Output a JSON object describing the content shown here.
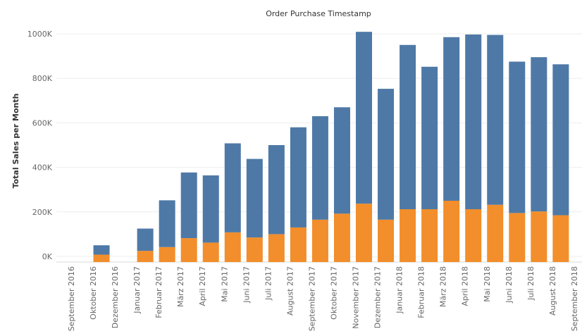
{
  "chart_data": {
    "type": "bar",
    "stacked": true,
    "title": "Order Purchase Timestamp",
    "ylabel": "Total Sales per Month",
    "xlabel": "",
    "ylim": [
      0,
      1000000
    ],
    "y_ticks": [
      0,
      200000,
      400000,
      600000,
      800000,
      1000000
    ],
    "y_tick_labels": [
      "0K",
      "200K",
      "400K",
      "600K",
      "800K",
      "1000K"
    ],
    "grid": "horizontal",
    "categories": [
      "September 2016",
      "Oktober 2016",
      "Dezember 2016",
      "Januar 2017",
      "Februar 2017",
      "März 2017",
      "April 2017",
      "Mai 2017",
      "Juni 2017",
      "Juli 2017",
      "August 2017",
      "September 2017",
      "Oktober 2017",
      "November 2017",
      "Dezember 2017",
      "Januar 2018",
      "Februar 2018",
      "März 2018",
      "April 2018",
      "Mai 2018",
      "Juni 2018",
      "Juli 2018",
      "August 2018",
      "September 2018"
    ],
    "series": [
      {
        "color": "#f28e2b",
        "values": [
          0,
          8000,
          0,
          25000,
          42000,
          82000,
          62000,
          108000,
          85000,
          100000,
          130000,
          165000,
          192000,
          237000,
          165000,
          212000,
          212000,
          250000,
          212000,
          232000,
          195000,
          202000,
          185000,
          0
        ]
      },
      {
        "color": "#4e79a7",
        "values": [
          0,
          42000,
          0,
          100000,
          210000,
          295000,
          302000,
          400000,
          353000,
          400000,
          450000,
          465000,
          478000,
          772000,
          588000,
          738000,
          640000,
          735000,
          785000,
          763000,
          680000,
          693000,
          678000,
          0
        ]
      }
    ]
  }
}
